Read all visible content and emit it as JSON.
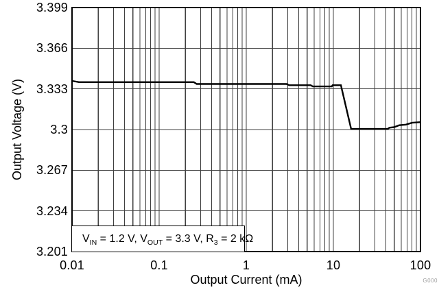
{
  "figure": {
    "watermark": "G000"
  },
  "colors": {
    "background": "#ffffff",
    "axis_border": "#000000",
    "grid": "#404040",
    "curve": "#000000",
    "text": "#000000",
    "watermark": "#a0a0a0"
  },
  "chart_data": {
    "type": "line",
    "title": "",
    "xlabel": "Output Current (mA)",
    "ylabel": "Output Voltage (V)",
    "x_scale": "log",
    "y_scale": "linear",
    "xlim": [
      0.01,
      100
    ],
    "ylim": [
      3.201,
      3.399
    ],
    "grid": {
      "show": true,
      "minor_x": true
    },
    "legend": "none",
    "x_ticks": [
      {
        "value": 0.01,
        "label": "0.01"
      },
      {
        "value": 0.1,
        "label": "0.1"
      },
      {
        "value": 1,
        "label": "1"
      },
      {
        "value": 10,
        "label": "10"
      },
      {
        "value": 100,
        "label": "100"
      }
    ],
    "y_ticks": [
      {
        "value": 3.399,
        "label": "3.399"
      },
      {
        "value": 3.366,
        "label": "3.366"
      },
      {
        "value": 3.333,
        "label": "3.333"
      },
      {
        "value": 3.3,
        "label": "3.3"
      },
      {
        "value": 3.267,
        "label": "3.267"
      },
      {
        "value": 3.234,
        "label": "3.234"
      },
      {
        "value": 3.201,
        "label": "3.201"
      }
    ],
    "annotation": {
      "text_plain": "VIN = 1.2 V, VOUT = 3.3 V, R3 = 2 kΩ",
      "parts": [
        {
          "text": "V"
        },
        {
          "sub": "IN"
        },
        {
          "text": " = 1.2 V, V"
        },
        {
          "sub": "OUT"
        },
        {
          "text": " = 3.3 V, R"
        },
        {
          "sub": "3"
        },
        {
          "text": " = 2 kΩ"
        }
      ]
    },
    "series": [
      {
        "name": "output-voltage",
        "color": "#000000",
        "points": [
          [
            0.01,
            3.3395
          ],
          [
            0.012,
            3.3385
          ],
          [
            0.25,
            3.3385
          ],
          [
            0.27,
            3.337
          ],
          [
            2.9,
            3.337
          ],
          [
            3.1,
            3.336
          ],
          [
            5.5,
            3.336
          ],
          [
            5.8,
            3.335
          ],
          [
            9.6,
            3.335
          ],
          [
            9.8,
            3.336
          ],
          [
            12.2,
            3.336
          ],
          [
            16,
            3.3005
          ],
          [
            42,
            3.3005
          ],
          [
            44,
            3.3015
          ],
          [
            50,
            3.302
          ],
          [
            57,
            3.3035
          ],
          [
            68,
            3.304
          ],
          [
            80,
            3.3055
          ],
          [
            100,
            3.306
          ]
        ]
      }
    ]
  }
}
